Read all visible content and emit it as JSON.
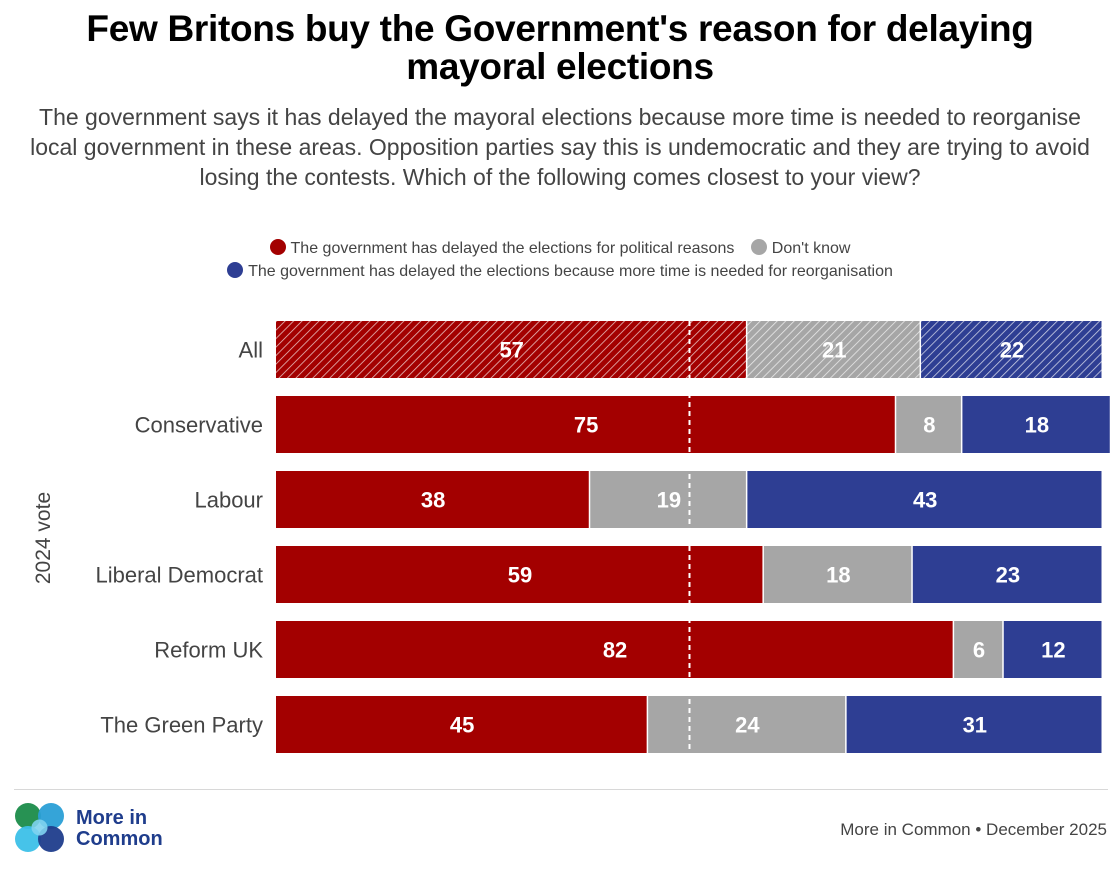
{
  "chart_data": {
    "type": "bar",
    "orientation": "horizontal",
    "stacked": true,
    "title": "Few Britons buy the Government's reason for delaying mayoral elections",
    "subtitle": "The government says it has delayed the mayoral elections because more time is needed to reorganise local government in these areas. Opposition parties say this is undemocratic and they are trying to avoid losing the contests. Which of the following comes closest to your view?",
    "ylabel": "2024 vote",
    "xlabel": "",
    "xlim": [
      0,
      100
    ],
    "reference_line": 50,
    "categories": [
      "All",
      "Conservative",
      "Labour",
      "Liberal Democrat",
      "Reform UK",
      "The Green Party"
    ],
    "series": [
      {
        "name": "The government has delayed the elections for political reasons",
        "color": "#a30000",
        "values": [
          57,
          75,
          38,
          59,
          82,
          45
        ]
      },
      {
        "name": "Don't know",
        "color": "#a6a6a6",
        "values": [
          21,
          8,
          19,
          18,
          6,
          24
        ]
      },
      {
        "name": "The government has delayed the elections because more time is needed for reorganisation",
        "color": "#2e3e93",
        "values": [
          22,
          18,
          43,
          23,
          12,
          31
        ]
      }
    ],
    "hatched_categories": [
      "All"
    ],
    "legend_position": "top-center"
  },
  "footer": {
    "logo_line1": "More in",
    "logo_line2": "Common",
    "source": "More in Common • December 2025"
  }
}
